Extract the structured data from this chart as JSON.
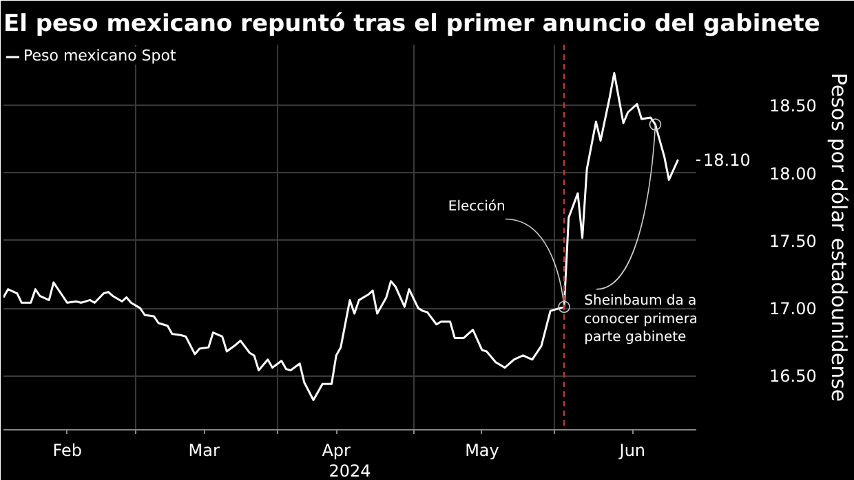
{
  "chart_data": {
    "type": "line",
    "title": "El peso mexicano repuntó tras el primer anuncio del gabinete",
    "xlabel": "2024",
    "ylabel": "Pesos por dólar estadounidense",
    "x": [
      "2024-02-01",
      "2024-02-02",
      "2024-02-04",
      "2024-02-05",
      "2024-02-07",
      "2024-02-08",
      "2024-02-09",
      "2024-02-11",
      "2024-02-12",
      "2024-02-14",
      "2024-02-15",
      "2024-02-17",
      "2024-02-18",
      "2024-02-20",
      "2024-02-21",
      "2024-02-23",
      "2024-02-24",
      "2024-02-25",
      "2024-02-27",
      "2024-02-28",
      "2024-02-29",
      "2024-03-02",
      "2024-03-03",
      "2024-03-05",
      "2024-03-06",
      "2024-03-08",
      "2024-03-09",
      "2024-03-11",
      "2024-03-12",
      "2024-03-14",
      "2024-03-15",
      "2024-03-17",
      "2024-03-18",
      "2024-03-20",
      "2024-03-21",
      "2024-03-23",
      "2024-03-24",
      "2024-03-26",
      "2024-03-27",
      "2024-03-28",
      "2024-03-30",
      "2024-03-31",
      "2024-04-02",
      "2024-04-03",
      "2024-04-04",
      "2024-04-06",
      "2024-04-07",
      "2024-04-09",
      "2024-04-10",
      "2024-04-11",
      "2024-04-13",
      "2024-04-14",
      "2024-04-15",
      "2024-04-17",
      "2024-04-18",
      "2024-04-19",
      "2024-04-21",
      "2024-04-22",
      "2024-04-23",
      "2024-04-25",
      "2024-04-26",
      "2024-04-27",
      "2024-04-29",
      "2024-04-30",
      "2024-05-02",
      "2024-05-03",
      "2024-05-04",
      "2024-05-06",
      "2024-05-07",
      "2024-05-09",
      "2024-05-10",
      "2024-05-12",
      "2024-05-13",
      "2024-05-14",
      "2024-05-16",
      "2024-05-17",
      "2024-05-19",
      "2024-05-21",
      "2024-05-23",
      "2024-05-25",
      "2024-05-27",
      "2024-05-29",
      "2024-05-30",
      "2024-05-31",
      "2024-06-03",
      "2024-06-04",
      "2024-06-06",
      "2024-06-07",
      "2024-06-08",
      "2024-06-10",
      "2024-06-11",
      "2024-06-13",
      "2024-06-14",
      "2024-06-16",
      "2024-06-17",
      "2024-06-19",
      "2024-06-20",
      "2024-06-22",
      "2024-06-23",
      "2024-06-25",
      "2024-06-26",
      "2024-06-28"
    ],
    "series": [
      {
        "name": "Peso mexicano Spot",
        "color": "#ffffff",
        "values": [
          17.08,
          17.14,
          17.11,
          17.04,
          17.04,
          17.14,
          17.09,
          17.06,
          17.19,
          17.09,
          17.04,
          17.05,
          17.04,
          17.06,
          17.04,
          17.11,
          17.12,
          17.09,
          17.05,
          17.08,
          17.04,
          17.0,
          16.95,
          16.94,
          16.89,
          16.87,
          16.81,
          16.8,
          16.79,
          16.66,
          16.7,
          16.71,
          16.82,
          16.79,
          16.68,
          16.73,
          16.76,
          16.67,
          16.65,
          16.54,
          16.62,
          16.56,
          16.61,
          16.55,
          16.54,
          16.59,
          16.45,
          16.32,
          16.38,
          16.44,
          16.44,
          16.65,
          16.71,
          17.06,
          16.96,
          17.06,
          17.1,
          17.13,
          16.96,
          17.08,
          17.2,
          17.16,
          17.01,
          17.14,
          17.0,
          16.98,
          16.97,
          16.88,
          16.9,
          16.9,
          16.78,
          16.78,
          16.81,
          16.84,
          16.69,
          16.68,
          16.6,
          16.56,
          16.62,
          16.65,
          16.62,
          16.72,
          16.85,
          16.98,
          17.01,
          17.67,
          17.85,
          17.52,
          18.03,
          18.38,
          18.24,
          18.56,
          18.74,
          18.37,
          18.45,
          18.51,
          18.4,
          18.41,
          18.36,
          18.12,
          17.95,
          18.1
        ],
        "value_labels": [
          null,
          null,
          null,
          null,
          null,
          null,
          null,
          null,
          null,
          null,
          null,
          null,
          null,
          null,
          null,
          null,
          null,
          null,
          null,
          null,
          null,
          null,
          null,
          null,
          null,
          null,
          null,
          null,
          null,
          null,
          null,
          null,
          null,
          null,
          null,
          null,
          null,
          null,
          null,
          null,
          null,
          null,
          null,
          null,
          null,
          null,
          null,
          null,
          null,
          null,
          null,
          null,
          null,
          null,
          null,
          null,
          null,
          null,
          null,
          null,
          null,
          null,
          null,
          null,
          null,
          null,
          null,
          null,
          null,
          null,
          null,
          null,
          null,
          null,
          null,
          null,
          null,
          null,
          null,
          null,
          null,
          null,
          null,
          null,
          null,
          null,
          null,
          null,
          null,
          null,
          null,
          null,
          null,
          null,
          null,
          null,
          null,
          null,
          null,
          null,
          null,
          "18.10"
        ]
      }
    ],
    "xlim": [
      "2024-02-01",
      "2024-07-02"
    ],
    "xticks": [
      {
        "value": "2024-02-15",
        "label": "Feb"
      },
      {
        "value": "2024-03-01",
        "label": null
      },
      {
        "value": "2024-03-16",
        "label": "Mar"
      },
      {
        "value": "2024-04-01",
        "label": null
      },
      {
        "value": "2024-04-14",
        "label": "Apr"
      },
      {
        "value": "2024-05-01",
        "label": null
      },
      {
        "value": "2024-05-16",
        "label": "May"
      },
      {
        "value": "2024-06-01",
        "label": null
      },
      {
        "value": "2024-06-18",
        "label": "Jun"
      }
    ],
    "ylim": [
      16.1,
      18.95
    ],
    "yticks": [
      {
        "value": 16.5,
        "label": "16.50"
      },
      {
        "value": 17.0,
        "label": "17.00"
      },
      {
        "value": 17.5,
        "label": "17.50"
      },
      {
        "value": 18.0,
        "label": "18.00"
      },
      {
        "value": 18.5,
        "label": "18.50"
      }
    ],
    "ref_lines": [
      {
        "axis": "x",
        "value": "2024-06-03",
        "color": "#c0392b",
        "line_style": "dashed"
      }
    ],
    "annotations": [
      {
        "text": "Elección",
        "x": "2024-06-03",
        "y": 17.01
      },
      {
        "text": "Sheinbaum da a conocer primera parte gabinete",
        "x": "2024-06-23",
        "y": 18.36
      }
    ],
    "grid": true,
    "legend": "top left"
  }
}
